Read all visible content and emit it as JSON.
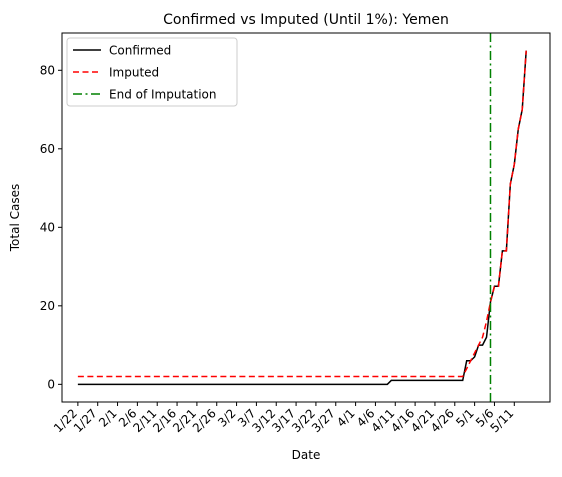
{
  "chart_data": {
    "type": "line",
    "title": "Confirmed vs Imputed (Until 1%): Yemen",
    "xlabel": "Date",
    "ylabel": "Total Cases",
    "x_start": "1/22",
    "x_tick_labels": [
      "1/22",
      "1/27",
      "2/1",
      "2/6",
      "2/11",
      "2/16",
      "2/21",
      "2/26",
      "3/2",
      "3/7",
      "3/12",
      "3/17",
      "3/22",
      "3/27",
      "4/1",
      "4/6",
      "4/11",
      "4/16",
      "4/21",
      "4/26",
      "5/1",
      "5/6",
      "5/11"
    ],
    "y_ticks": [
      0,
      20,
      40,
      60,
      80
    ],
    "ylim": [
      -4.5,
      89.5
    ],
    "xlim": [
      "1/18",
      "5/20"
    ],
    "grid": false,
    "legend_position": "upper-left",
    "series": [
      {
        "name": "Confirmed",
        "color": "#000000",
        "style": "solid",
        "points": [
          [
            "1/22",
            0
          ],
          [
            "4/9",
            0
          ],
          [
            "4/10",
            1
          ],
          [
            "4/28",
            1
          ],
          [
            "4/29",
            6
          ],
          [
            "4/30",
            6
          ],
          [
            "5/1",
            7
          ],
          [
            "5/2",
            10
          ],
          [
            "5/3",
            10
          ],
          [
            "5/4",
            12
          ],
          [
            "5/5",
            21
          ],
          [
            "5/6",
            25
          ],
          [
            "5/7",
            25
          ],
          [
            "5/8",
            34
          ],
          [
            "5/9",
            34
          ],
          [
            "5/10",
            51
          ],
          [
            "5/11",
            56
          ],
          [
            "5/12",
            65
          ],
          [
            "5/13",
            70
          ],
          [
            "5/14",
            85
          ]
        ]
      },
      {
        "name": "Imputed",
        "color": "#ff0000",
        "style": "dashed",
        "points": [
          [
            "1/22",
            2
          ],
          [
            "4/28",
            2
          ],
          [
            "4/29",
            4
          ],
          [
            "4/30",
            6
          ],
          [
            "5/1",
            8
          ],
          [
            "5/2",
            10
          ],
          [
            "5/3",
            12
          ],
          [
            "5/4",
            16
          ],
          [
            "5/5",
            21
          ],
          [
            "5/6",
            25
          ],
          [
            "5/7",
            25
          ],
          [
            "5/8",
            34
          ],
          [
            "5/9",
            34
          ],
          [
            "5/10",
            51
          ],
          [
            "5/11",
            56
          ],
          [
            "5/12",
            65
          ],
          [
            "5/13",
            70
          ],
          [
            "5/14",
            85
          ]
        ]
      }
    ],
    "vertical_lines": [
      {
        "name": "End of Imputation",
        "x": "5/5",
        "color": "#008000",
        "style": "dashdot"
      }
    ]
  }
}
